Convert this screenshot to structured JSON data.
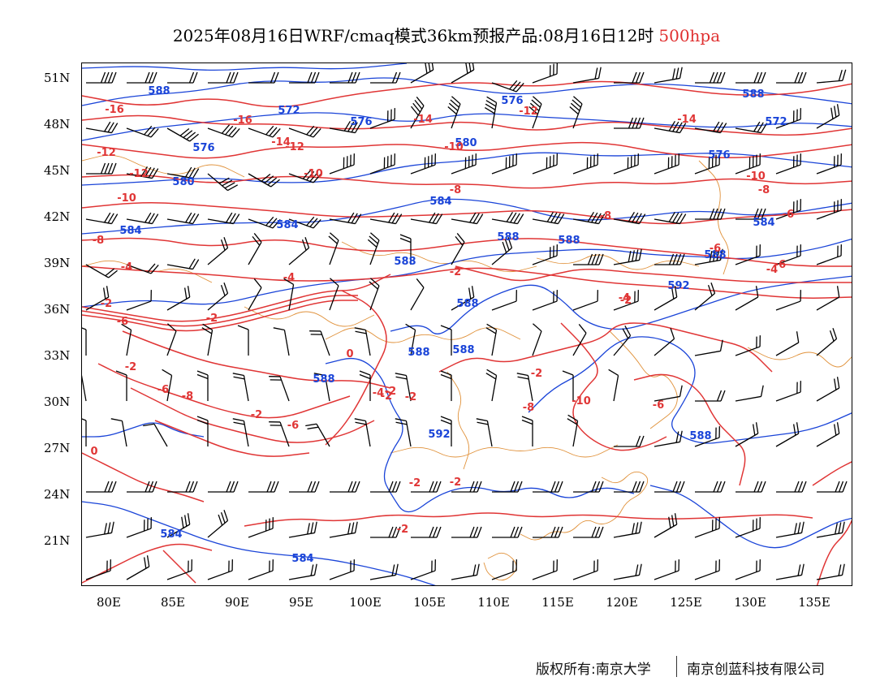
{
  "title": {
    "main": "2025年08月16日WRF/cmaq模式36km预报产品:08月16日12时",
    "level": "500hpa"
  },
  "colors": {
    "height_contour": "#1a44d8",
    "temp_contour": "#e03535",
    "coast_border": "#e0913a",
    "wind_barb": "#000000",
    "level_text": "#e03030"
  },
  "axes": {
    "lat_labels": [
      "51N",
      "48N",
      "45N",
      "42N",
      "39N",
      "36N",
      "33N",
      "30N",
      "27N",
      "24N",
      "21N"
    ],
    "lon_labels": [
      "80E",
      "85E",
      "90E",
      "95E",
      "100E",
      "105E",
      "110E",
      "115E",
      "120E",
      "125E",
      "130E",
      "135E"
    ]
  },
  "height_labels": [
    "588",
    "572",
    "576",
    "576",
    "580",
    "572",
    "576",
    "580",
    "576",
    "588",
    "584",
    "588",
    "584",
    "584",
    "584",
    "588",
    "588",
    "588",
    "592",
    "588",
    "588",
    "588",
    "588",
    "592",
    "588",
    "584",
    "584"
  ],
  "temp_labels": [
    "-16",
    "-16",
    "-14",
    "-12",
    "-12",
    "-12",
    "-14",
    "-10",
    "-14",
    "-12",
    "-10",
    "-8",
    "-10",
    "-10",
    "-8",
    "-8",
    "-6",
    "-6",
    "-6",
    "-8",
    "-4",
    "-4",
    "-4",
    "-2",
    "-2",
    "-4",
    "0",
    "-2",
    "-2",
    "-4",
    "-6",
    "-6",
    "-6",
    "-8",
    "-2",
    "-2",
    "-2",
    "-2",
    "-2",
    "0",
    "-2",
    "-2",
    "-2",
    "-2",
    "-6",
    "-8",
    "-10"
  ],
  "footer": {
    "left": "版权所有:南京大学",
    "right": "南京创蓝科技有限公司"
  }
}
